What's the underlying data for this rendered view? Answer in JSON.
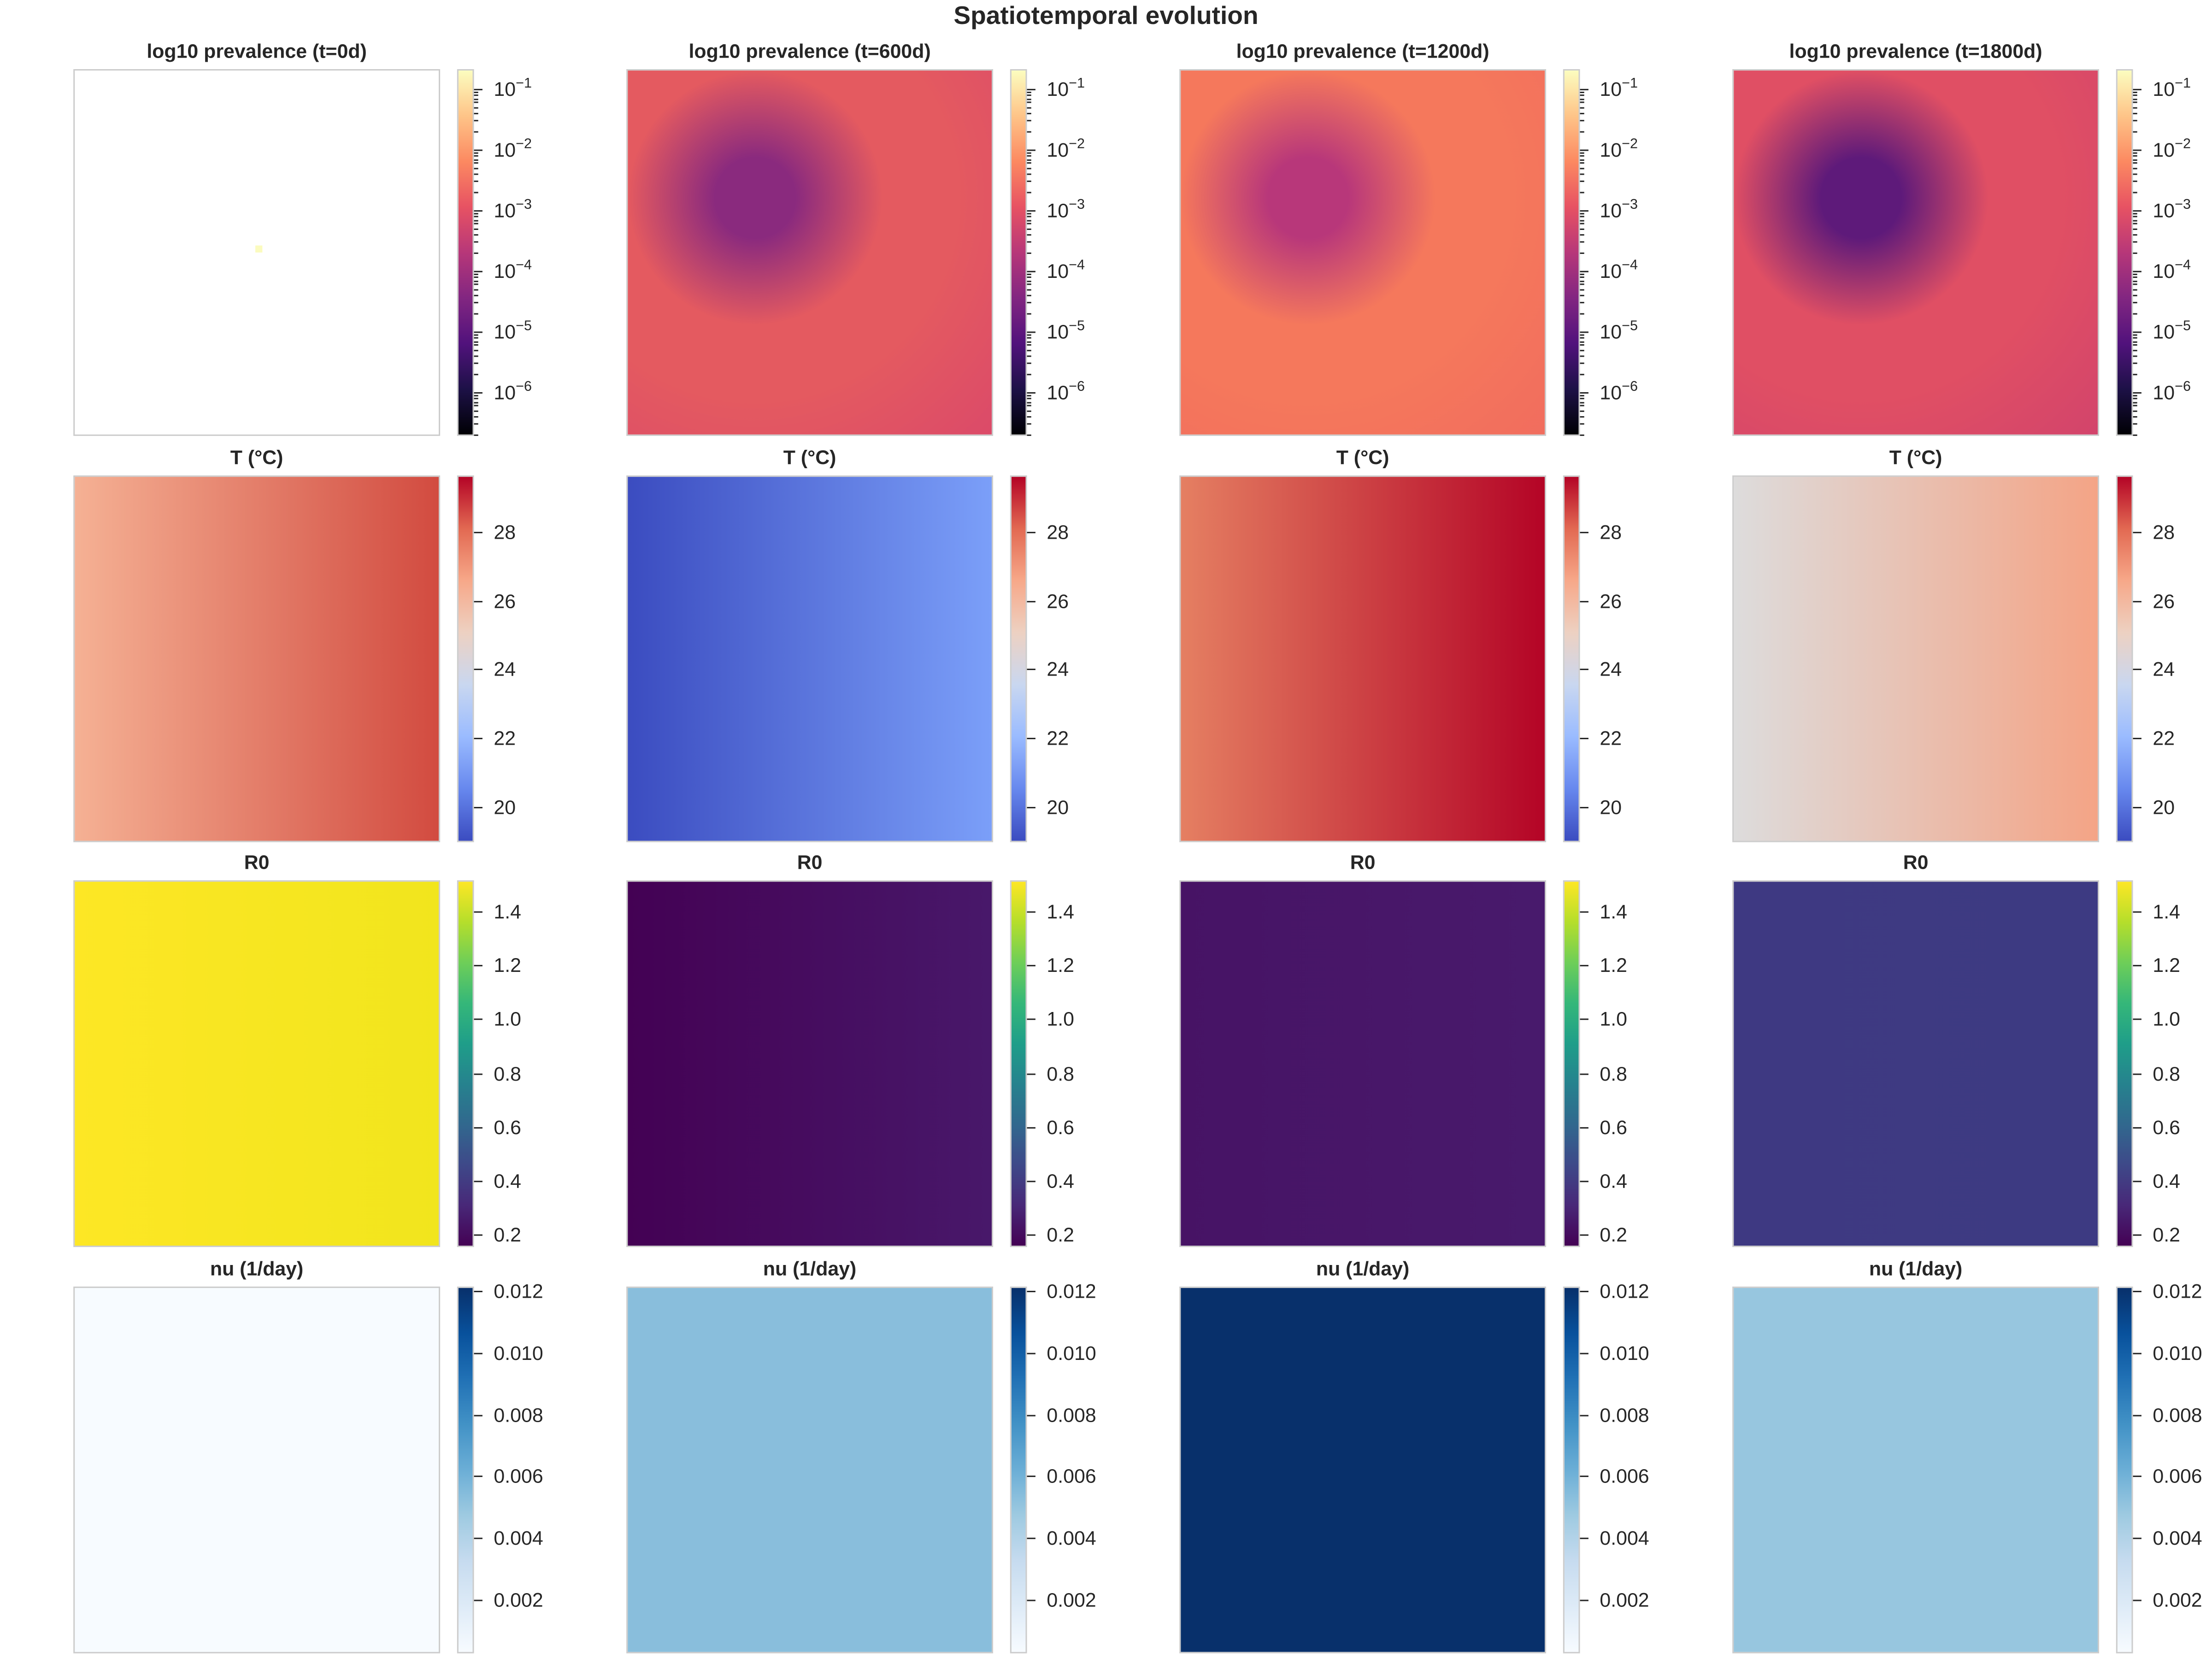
{
  "title": "Spatiotemporal evolution",
  "chart_data": {
    "type": "heatmap",
    "title": "Spatiotemporal evolution",
    "grid": false,
    "layout": "4 rows x 4 columns, colorbar right of each panel",
    "times": [
      "t=0d",
      "t=600d",
      "t=1200d",
      "t=1800d"
    ],
    "rows": [
      {
        "key": "prevalence",
        "colormap": "magma",
        "scale": "log",
        "range_log10": [
          -6.7,
          -0.7
        ],
        "ticks": [
          {
            "value": -1,
            "base": "10",
            "exp": "−1"
          },
          {
            "value": -2,
            "base": "10",
            "exp": "−2"
          },
          {
            "value": -3,
            "base": "10",
            "exp": "−3"
          },
          {
            "value": -4,
            "base": "10",
            "exp": "−4"
          },
          {
            "value": -5,
            "base": "10",
            "exp": "−5"
          },
          {
            "value": -6,
            "base": "10",
            "exp": "−6"
          }
        ],
        "cbar_colors": [
          "#000004",
          "#1d1147",
          "#51127c",
          "#822681",
          "#b73779",
          "#e75263",
          "#fc8961",
          "#fec488",
          "#fcfdbf"
        ],
        "panels": [
          {
            "title": "log10 prevalence (t=0d)",
            "background": "#ffffff",
            "seed_color": "#fbfbbf",
            "seed_present": true
          },
          {
            "title": "log10 prevalence (t=600d)",
            "background": "#e45a60",
            "edge": "#d9466b",
            "core": "#8a2a7e"
          },
          {
            "title": "log10 prevalence (t=1200d)",
            "background": "#f5785c",
            "edge": "#f06a5e",
            "core": "#b8377a"
          },
          {
            "title": "log10 prevalence (t=1800d)",
            "background": "#e04f64",
            "edge": "#cf416d",
            "core": "#5e1a7a"
          }
        ]
      },
      {
        "key": "temperature",
        "colormap": "coolwarm",
        "scale": "linear",
        "range": [
          19.0,
          29.6
        ],
        "ticks": [
          {
            "value": 20,
            "label": "20"
          },
          {
            "value": 22,
            "label": "22"
          },
          {
            "value": 24,
            "label": "24"
          },
          {
            "value": 26,
            "label": "26"
          },
          {
            "value": 28,
            "label": "28"
          }
        ],
        "cbar_colors": [
          "#3b4cc0",
          "#6788ee",
          "#9abbff",
          "#c9d7f0",
          "#edd1c2",
          "#f7a889",
          "#e26952",
          "#b40426"
        ],
        "panels": [
          {
            "title": "T (°C)",
            "left": "#f5b194",
            "right": "#d24b40"
          },
          {
            "title": "T (°C)",
            "left": "#3b4cc0",
            "right": "#7b9ff9"
          },
          {
            "title": "T (°C)",
            "left": "#e57f62",
            "right": "#b40426"
          },
          {
            "title": "T (°C)",
            "left": "#dddcdc",
            "right": "#f4a486"
          }
        ]
      },
      {
        "key": "R0",
        "colormap": "viridis",
        "scale": "linear",
        "range": [
          0.16,
          1.51
        ],
        "ticks": [
          {
            "value": 0.2,
            "label": "0.2"
          },
          {
            "value": 0.4,
            "label": "0.4"
          },
          {
            "value": 0.6,
            "label": "0.6"
          },
          {
            "value": 0.8,
            "label": "0.8"
          },
          {
            "value": 1.0,
            "label": "1.0"
          },
          {
            "value": 1.2,
            "label": "1.2"
          },
          {
            "value": 1.4,
            "label": "1.4"
          }
        ],
        "cbar_colors": [
          "#440154",
          "#482878",
          "#3e4989",
          "#31688e",
          "#26828e",
          "#1f9e89",
          "#35b779",
          "#6ece58",
          "#b5de2b",
          "#fde725"
        ],
        "panels": [
          {
            "title": "R0",
            "left": "#fde725",
            "right": "#f1e51d"
          },
          {
            "title": "R0",
            "left": "#440154",
            "right": "#48186a"
          },
          {
            "title": "R0",
            "left": "#471365",
            "right": "#481a6c"
          },
          {
            "title": "R0",
            "left": "#3e3982",
            "right": "#3d3a82"
          }
        ]
      },
      {
        "key": "nu",
        "colormap": "Blues",
        "scale": "linear",
        "range": [
          0.0003,
          0.0121
        ],
        "ticks": [
          {
            "value": 0.002,
            "label": "0.002"
          },
          {
            "value": 0.004,
            "label": "0.004"
          },
          {
            "value": 0.006,
            "label": "0.006"
          },
          {
            "value": 0.008,
            "label": "0.008"
          },
          {
            "value": 0.01,
            "label": "0.010"
          },
          {
            "value": 0.012,
            "label": "0.012"
          }
        ],
        "cbar_colors": [
          "#f7fbff",
          "#deebf7",
          "#c6dbef",
          "#9ecae1",
          "#6baed6",
          "#4292c6",
          "#2171b5",
          "#08519c",
          "#08306b"
        ],
        "panels": [
          {
            "title": "nu (1/day)",
            "left": "#f7fbff",
            "right": "#f7fbff"
          },
          {
            "title": "nu (1/day)",
            "left": "#89bedc",
            "right": "#89bedc"
          },
          {
            "title": "nu (1/day)",
            "left": "#08306b",
            "right": "#08306b"
          },
          {
            "title": "nu (1/day)",
            "left": "#97c6df",
            "right": "#97c6df"
          }
        ]
      }
    ]
  }
}
